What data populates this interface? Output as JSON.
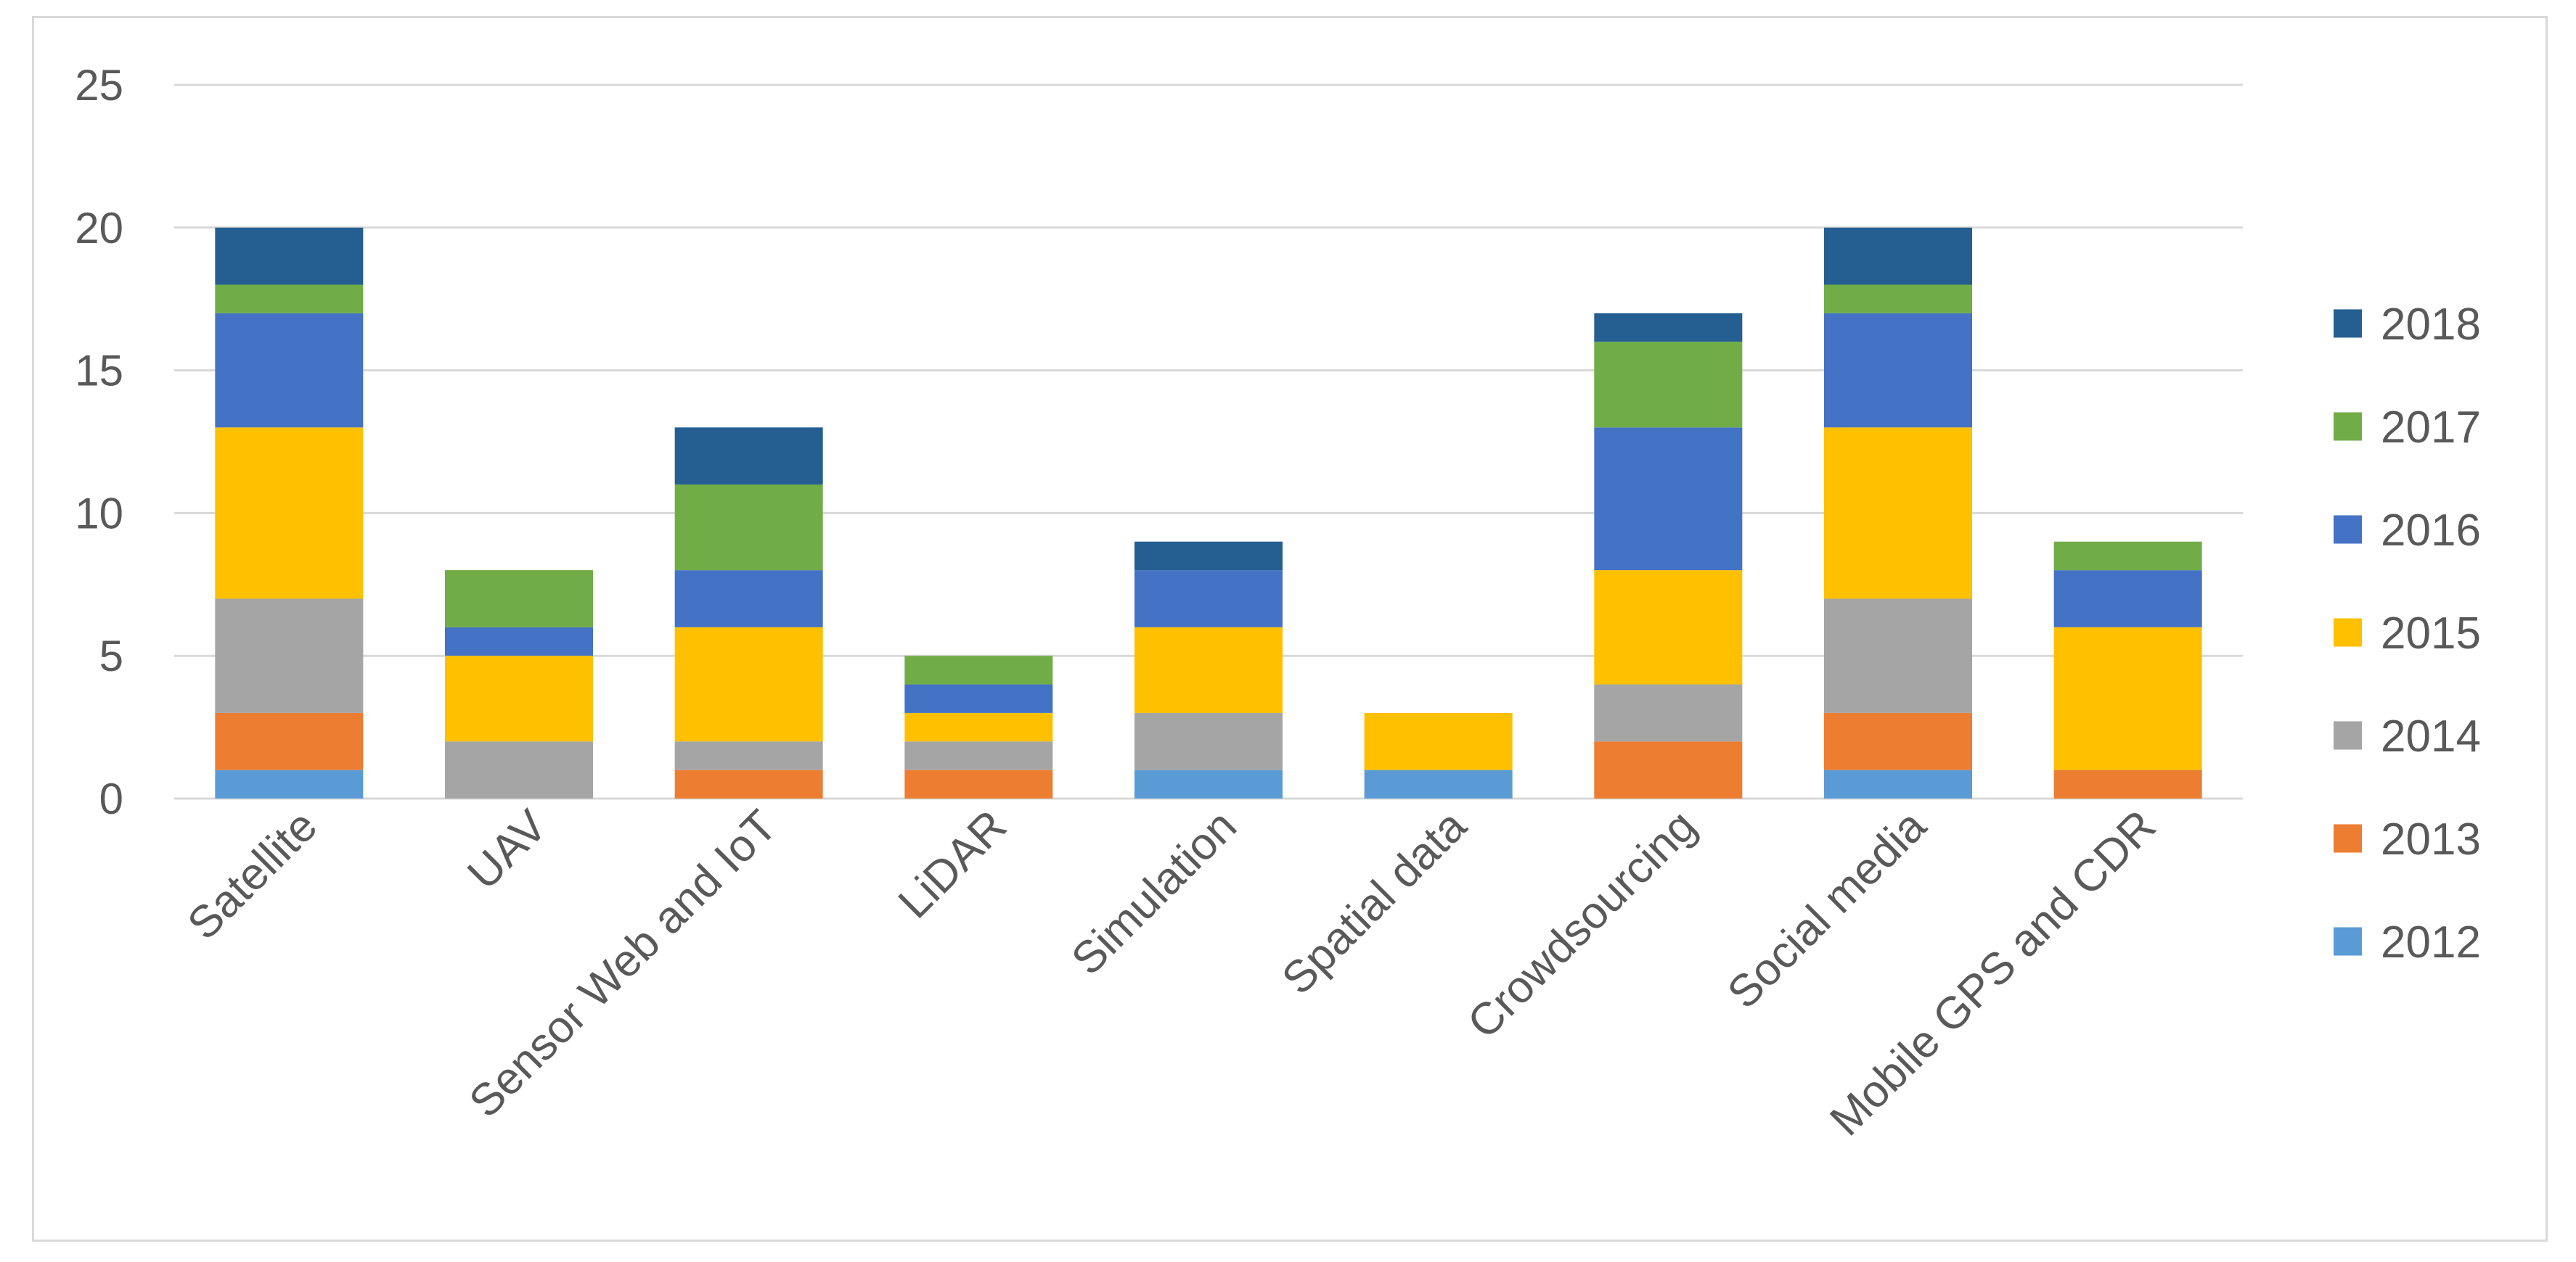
{
  "chart_data": {
    "type": "bar",
    "stacked": true,
    "title": "",
    "xlabel": "",
    "ylabel": "",
    "ylim": [
      0,
      25
    ],
    "yticks": [
      0,
      5,
      10,
      15,
      20,
      25
    ],
    "grid": true,
    "legend_position": "right",
    "categories": [
      "Satellite",
      "UAV",
      "Sensor Web and IoT",
      "LiDAR",
      "Simulation",
      "Spatial data",
      "Crowdsourcing",
      "Social media",
      "Mobile GPS and CDR"
    ],
    "series": [
      {
        "name": "2012",
        "color": "#5b9bd5",
        "values": [
          1,
          0,
          0,
          0,
          1,
          1,
          0,
          1,
          0
        ]
      },
      {
        "name": "2013",
        "color": "#ed7d31",
        "values": [
          2,
          0,
          1,
          1,
          0,
          0,
          2,
          2,
          1
        ]
      },
      {
        "name": "2014",
        "color": "#a5a5a5",
        "values": [
          4,
          2,
          1,
          1,
          2,
          0,
          2,
          4,
          0
        ]
      },
      {
        "name": "2015",
        "color": "#ffc000",
        "values": [
          6,
          3,
          4,
          1,
          3,
          2,
          4,
          6,
          5
        ]
      },
      {
        "name": "2016",
        "color": "#4472c4",
        "values": [
          4,
          1,
          2,
          1,
          2,
          0,
          5,
          4,
          2
        ]
      },
      {
        "name": "2017",
        "color": "#70ad47",
        "values": [
          1,
          2,
          3,
          1,
          0,
          0,
          3,
          1,
          1
        ]
      },
      {
        "name": "2018",
        "color": "#255e91",
        "values": [
          2,
          0,
          2,
          0,
          1,
          0,
          1,
          2,
          0
        ]
      }
    ]
  }
}
